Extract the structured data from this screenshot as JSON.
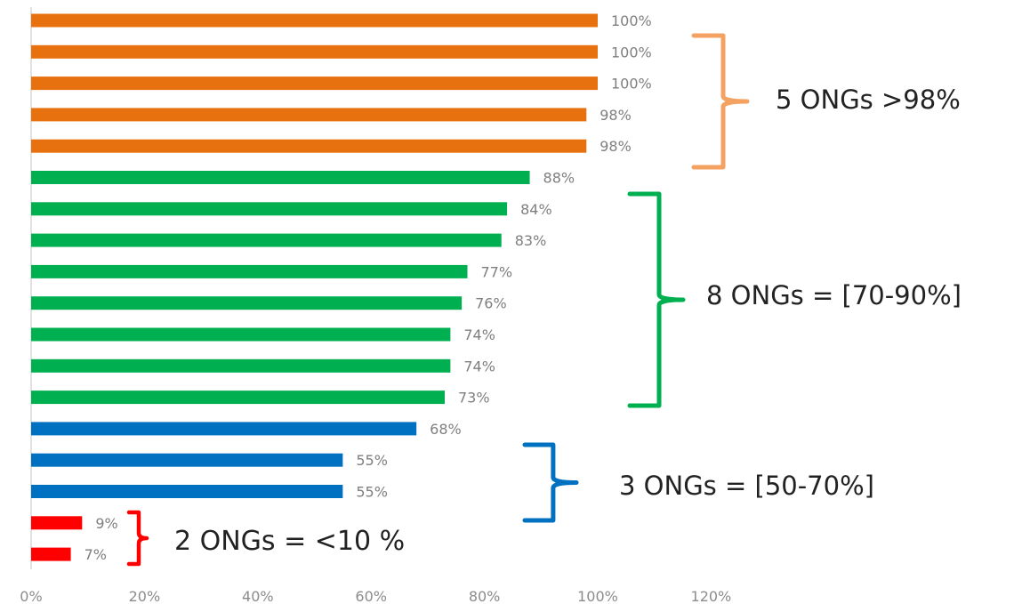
{
  "chart_data": {
    "type": "bar",
    "orientation": "horizontal",
    "xlim": [
      0,
      120
    ],
    "x_ticks": [
      "0%",
      "20%",
      "40%",
      "60%",
      "80%",
      "100%",
      "120%"
    ],
    "x_tick_values": [
      0,
      20,
      40,
      60,
      80,
      100,
      120
    ],
    "grid": false,
    "values": [
      100,
      100,
      100,
      98,
      98,
      88,
      84,
      83,
      77,
      76,
      74,
      74,
      73,
      68,
      55,
      55,
      9,
      7
    ],
    "value_labels": [
      "100%",
      "100%",
      "100%",
      "98%",
      "98%",
      "88%",
      "84%",
      "83%",
      "77%",
      "76%",
      "74%",
      "74%",
      "73%",
      "68%",
      "55%",
      "55%",
      "9%",
      "7%"
    ],
    "bar_colors": [
      "#e8710f",
      "#e8710f",
      "#e8710f",
      "#e8710f",
      "#e8710f",
      "#00b050",
      "#00b050",
      "#00b050",
      "#00b050",
      "#00b050",
      "#00b050",
      "#00b050",
      "#00b050",
      "#0070c0",
      "#0070c0",
      "#0070c0",
      "#ff0000",
      "#ff0000"
    ],
    "groups": [
      {
        "label": "5 ONGs >98%",
        "color": "#f4a261",
        "bars": [
          0,
          4
        ]
      },
      {
        "label": "8 ONGs = [70-90%]",
        "color": "#00b050",
        "bars": [
          5,
          12
        ]
      },
      {
        "label": "3 ONGs = [50-70%]",
        "color": "#0070c0",
        "bars": [
          13,
          15
        ]
      },
      {
        "label": "2 ONGs = <10 %",
        "color": "#ff0000",
        "bars": [
          16,
          17
        ]
      }
    ]
  }
}
